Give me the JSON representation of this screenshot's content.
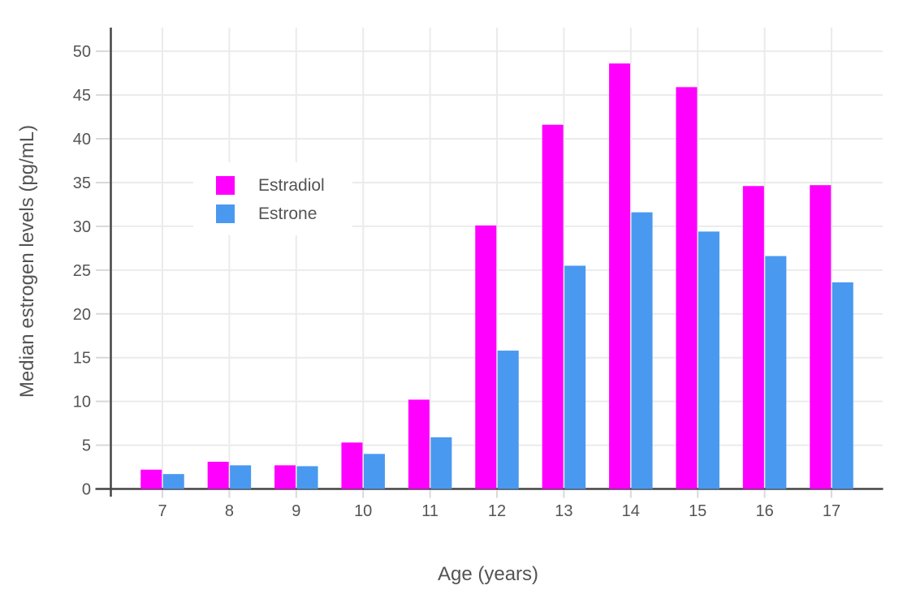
{
  "styles": {
    "background": "#FFFFFF",
    "axis_line_color": "#444444",
    "grid_color": "#EBEBEB",
    "tick_mark_color": "#D9D9D9",
    "text_color": "#545454"
  },
  "chart_data": {
    "type": "bar",
    "title": "",
    "xlabel": "Age (years)",
    "ylabel": "Median estrogen levels (pg/mL)",
    "categories": [
      "7",
      "8",
      "9",
      "10",
      "11",
      "12",
      "13",
      "14",
      "15",
      "16",
      "17"
    ],
    "series": [
      {
        "name": "Estradiol",
        "color": "#FF00FF",
        "values": [
          2.2,
          3.1,
          2.7,
          5.3,
          10.2,
          30.1,
          41.6,
          48.6,
          45.9,
          34.6,
          34.7
        ]
      },
      {
        "name": "Estrone",
        "color": "#4A99F0",
        "values": [
          1.7,
          2.7,
          2.6,
          4.0,
          5.9,
          15.8,
          25.5,
          31.6,
          29.4,
          26.6,
          23.6
        ]
      }
    ],
    "ylim": [
      0,
      52.7
    ],
    "yticks": [
      0,
      5,
      10,
      15,
      20,
      25,
      30,
      35,
      40,
      45,
      50
    ],
    "grid": true,
    "legend": {
      "position": "inside-top-left",
      "items": [
        "Estradiol",
        "Estrone"
      ]
    }
  }
}
